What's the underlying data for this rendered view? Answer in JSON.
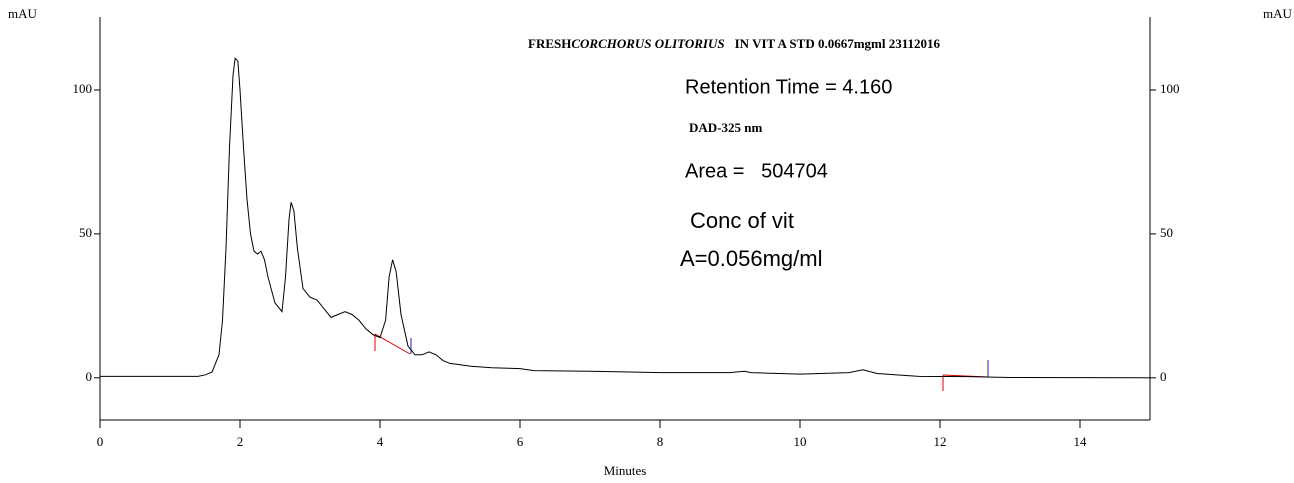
{
  "chart_data": {
    "type": "line",
    "title": [
      "FRESH",
      "CORCHORUS OLITORIUS",
      "IN VIT A STD 0.0667mgml 23112016"
    ],
    "annotations": [
      "Retention Time = 4.160",
      "DAD-325 nm",
      "Area =   504704",
      "Conc of vit",
      "A=0.056mg/ml"
    ],
    "x_label": "Minutes",
    "y_label": "mAU",
    "y2_label": "mAU",
    "xlim": [
      0,
      15
    ],
    "xticks": [
      0,
      2,
      4,
      6,
      8,
      10,
      12,
      14
    ],
    "ylim": [
      -15,
      125
    ],
    "yticks": [
      0,
      50,
      100
    ],
    "y2lim": [
      -15,
      125
    ],
    "y2ticks": [
      0,
      50,
      100
    ],
    "series": [
      {
        "color": "#000000",
        "x": [
          0,
          1.4,
          1.5,
          1.6,
          1.7,
          1.75,
          1.8,
          1.85,
          1.9,
          1.93,
          1.97,
          2.0,
          2.05,
          2.1,
          2.15,
          2.2,
          2.25,
          2.3,
          2.35,
          2.4,
          2.5,
          2.6,
          2.65,
          2.7,
          2.73,
          2.77,
          2.82,
          2.9,
          3.0,
          3.1,
          3.2,
          3.3,
          3.4,
          3.5,
          3.6,
          3.7,
          3.8,
          3.9,
          4.0,
          4.08,
          4.13,
          4.18,
          4.23,
          4.3,
          4.4,
          4.5,
          4.6,
          4.7,
          4.8,
          4.9,
          5.0,
          5.3,
          5.6,
          6.0,
          6.2,
          7.0,
          8.0,
          9.0,
          9.2,
          9.3,
          10.0,
          10.7,
          10.9,
          11.1,
          11.7,
          12.4,
          13.0,
          15.0
        ],
        "values": [
          0.5,
          0.5,
          1,
          2,
          8,
          20,
          45,
          80,
          105,
          111,
          110,
          100,
          80,
          62,
          50,
          44,
          43,
          44,
          41,
          35,
          26,
          23,
          35,
          55,
          61,
          58,
          45,
          31,
          28,
          27,
          24,
          21,
          22,
          23,
          22,
          20,
          17,
          15,
          14,
          20,
          35,
          41,
          37,
          22,
          11,
          8,
          8,
          9,
          8,
          6,
          5,
          4,
          3.5,
          3.2,
          2.5,
          2.3,
          1.8,
          1.8,
          2.3,
          1.8,
          1.3,
          1.8,
          2.8,
          1.5,
          0.5,
          0.4,
          0.1,
          0
        ]
      }
    ]
  }
}
